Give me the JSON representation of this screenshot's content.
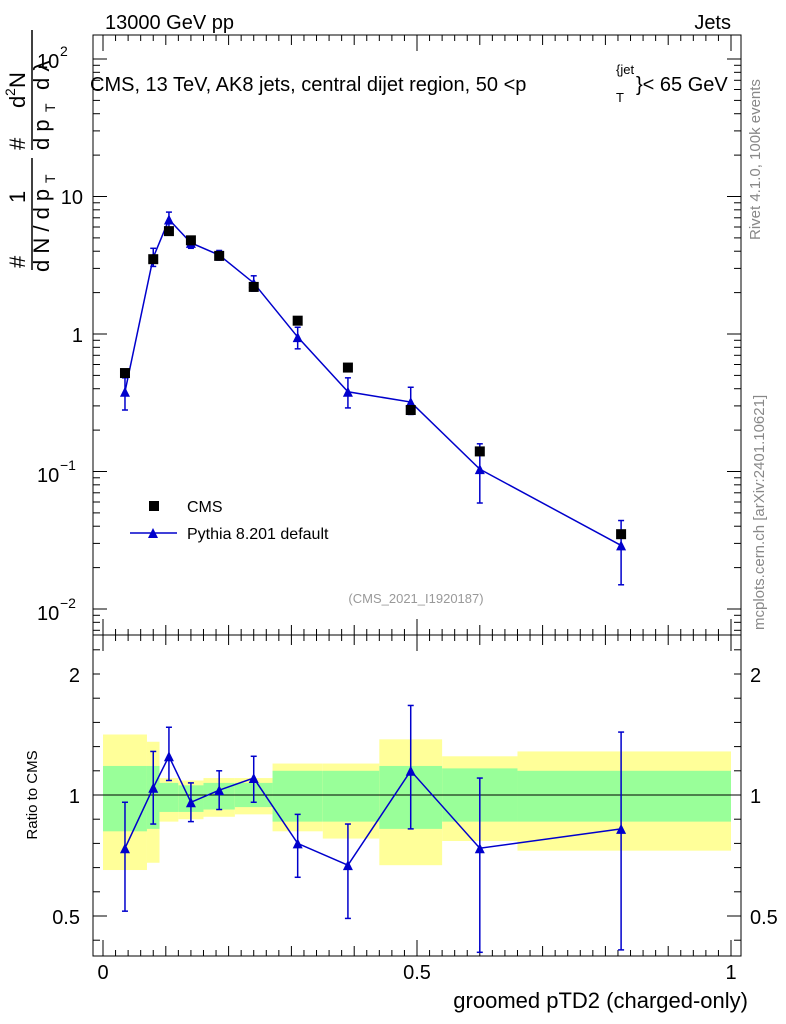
{
  "header": {
    "left": "13000 GeV pp",
    "right": "Jets"
  },
  "side_labels": {
    "rivet": "Rivet 4.1.0,  100k events",
    "mcplots": "mcplots.cern.ch [arXiv:2401.10621]"
  },
  "chart_data": {
    "type": "scatter",
    "title": "CMS, 13 TeV, AK8 jets, central dijet region, 50 <p_T^{jet}< 65 GeV",
    "title_parts": {
      "main": "CMS, 13 TeV, AK8 jets, central dijet region, 50 <p",
      "sub": "T",
      "sup": "{jet",
      "tail": "}< 65 GeV"
    },
    "analysis_tag": "(CMS_2021_I1920187)",
    "xlabel": "groomed pTD2 (charged-only)",
    "ylabel_top": "1/(dN/dp_T) d^2N/(dp_T dλ)",
    "ylabel_bottom": "Ratio to CMS",
    "xlim": [
      0,
      1
    ],
    "ylim_top": [
      0.008,
      150
    ],
    "ylim_ratio": [
      0.35,
      2.25
    ],
    "x_ticks": [
      "0",
      "0.5",
      "1"
    ],
    "y_ticks_top": [
      "10",
      "1"
    ],
    "y_ticks_ratio": [
      "2",
      "1",
      "0.5"
    ],
    "ylabel_parts": {
      "hash": "#",
      "one": "1",
      "dN": "d N / d p",
      "T": "T",
      "d2N": "d",
      "two": "2",
      "N": "N",
      "dpT": "d p",
      "dl": "d λ"
    },
    "legend": {
      "data": "CMS",
      "mc": "Pythia 8.201 default"
    },
    "series": [
      {
        "name": "CMS",
        "x": [
          0.035,
          0.08,
          0.105,
          0.14,
          0.185,
          0.24,
          0.31,
          0.39,
          0.49,
          0.6,
          0.825
        ],
        "y": [
          0.52,
          3.5,
          5.6,
          4.8,
          3.7,
          2.2,
          1.25,
          0.57,
          0.28,
          0.14,
          0.035
        ]
      },
      {
        "name": "Pythia 8.201 default",
        "x": [
          0.035,
          0.08,
          0.105,
          0.14,
          0.185,
          0.24,
          0.31,
          0.39,
          0.49,
          0.6,
          0.825
        ],
        "y": [
          0.38,
          3.6,
          6.8,
          4.6,
          3.75,
          2.35,
          0.95,
          0.38,
          0.32,
          0.104,
          0.029
        ],
        "err_lo": [
          0.1,
          0.5,
          0.9,
          0.4,
          0.3,
          0.3,
          0.17,
          0.09,
          0.06,
          0.045,
          0.014
        ],
        "err_hi": [
          0.1,
          0.6,
          0.9,
          0.4,
          0.3,
          0.3,
          0.17,
          0.1,
          0.09,
          0.055,
          0.015
        ]
      }
    ],
    "ratio": {
      "x": [
        0.035,
        0.08,
        0.105,
        0.14,
        0.185,
        0.24,
        0.31,
        0.39,
        0.49,
        0.6,
        0.825
      ],
      "y": [
        0.78,
        1.03,
        1.16,
        0.97,
        1.02,
        1.07,
        0.8,
        0.71,
        1.1,
        0.78,
        0.86
      ],
      "err_lo": [
        0.26,
        0.15,
        0.1,
        0.08,
        0.08,
        0.1,
        0.14,
        0.22,
        0.24,
        0.43,
        0.5
      ],
      "err_hi": [
        0.19,
        0.15,
        0.12,
        0.08,
        0.08,
        0.09,
        0.12,
        0.17,
        0.27,
        0.29,
        0.4
      ]
    },
    "bands": {
      "edges": [
        0,
        0.07,
        0.09,
        0.12,
        0.16,
        0.21,
        0.27,
        0.35,
        0.44,
        0.54,
        0.66,
        1.0
      ],
      "green_lo": [
        0.85,
        0.86,
        0.93,
        0.93,
        0.94,
        0.95,
        0.89,
        0.89,
        0.86,
        0.89,
        0.89
      ],
      "green_hi": [
        1.12,
        1.12,
        1.05,
        1.04,
        1.05,
        1.05,
        1.1,
        1.1,
        1.12,
        1.11,
        1.1
      ],
      "yellow_lo": [
        0.69,
        0.72,
        0.89,
        0.9,
        0.91,
        0.92,
        0.85,
        0.82,
        0.71,
        0.81,
        0.77
      ],
      "yellow_hi": [
        1.25,
        1.22,
        1.07,
        1.06,
        1.07,
        1.07,
        1.13,
        1.13,
        1.23,
        1.16,
        1.18
      ]
    },
    "colors": {
      "mc": "#0000cc",
      "data": "#000000",
      "green": "#99ff99",
      "yellow": "#ffff99"
    }
  }
}
